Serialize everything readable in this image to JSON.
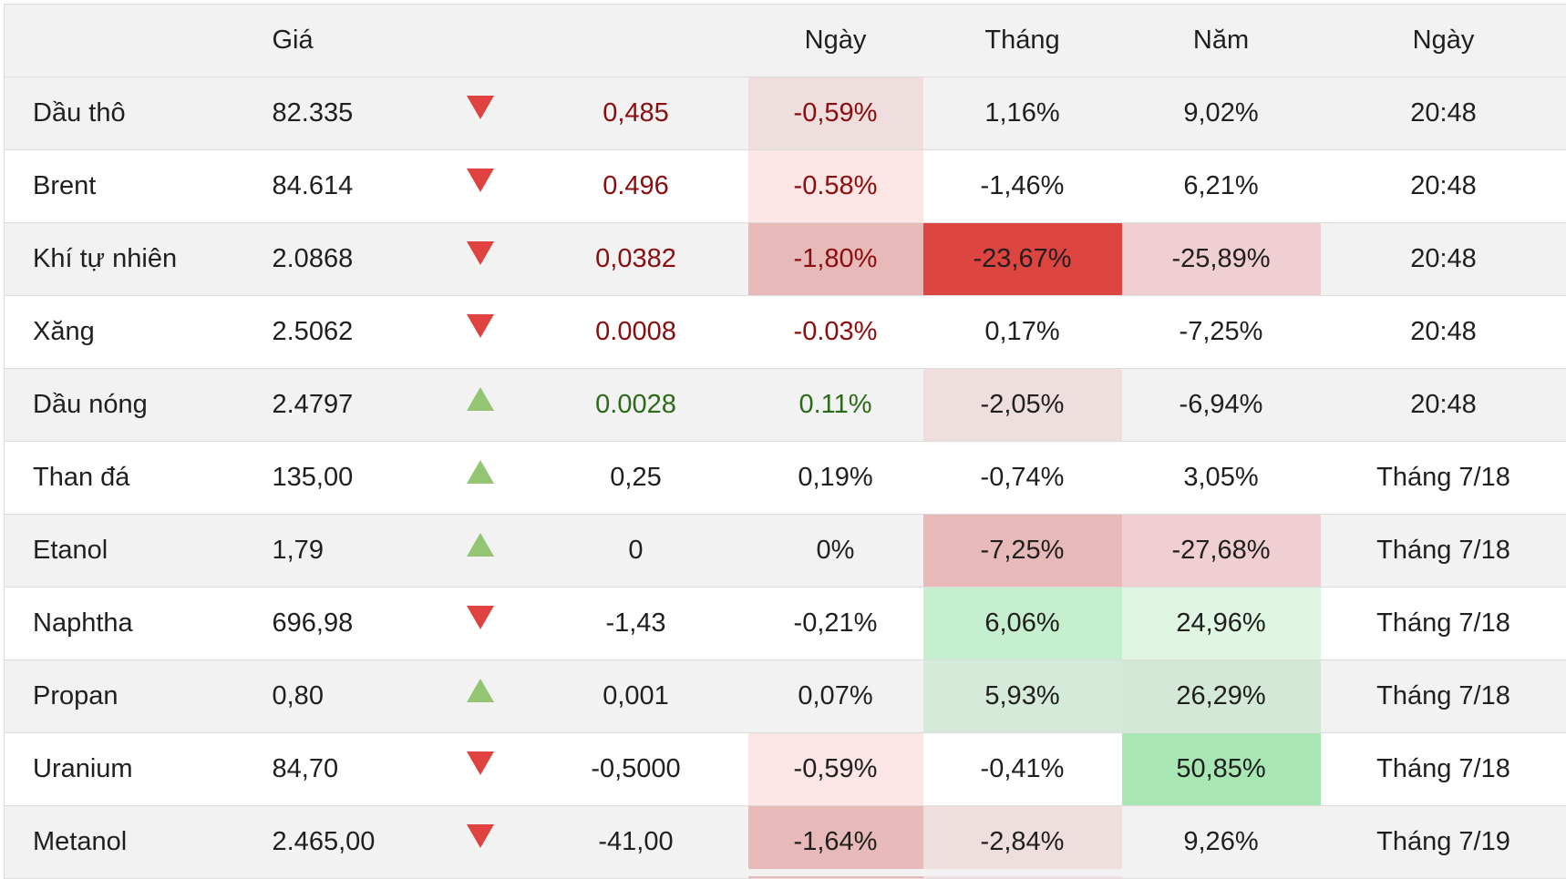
{
  "header": {
    "col_price": "Giá",
    "col_day": "Ngày",
    "col_month": "Tháng",
    "col_year": "Năm",
    "col_date": "Ngày"
  },
  "colors": {
    "down_arrow": "#e0433f",
    "up_arrow": "#93c572",
    "negative_text": "#8b0d0d",
    "positive_text": "#2a6b15"
  },
  "rows": [
    {
      "name": "Dầu thô",
      "price": "82.335",
      "direction": "down",
      "change": "0,485",
      "change_tone": "neg",
      "day": "-0,59%",
      "day_tone": "neg",
      "day_bg": "#efdede",
      "month": "1,16%",
      "month_bg": "",
      "year": "9,02%",
      "year_bg": "",
      "time": "20:48"
    },
    {
      "name": "Brent",
      "price": "84.614",
      "direction": "down",
      "change": "0.496",
      "change_tone": "neg",
      "day": "-0.58%",
      "day_tone": "neg",
      "day_bg": "#fbe5e5",
      "month": "-1,46%",
      "month_bg": "",
      "year": "6,21%",
      "year_bg": "",
      "time": "20:48"
    },
    {
      "name": "Khí tự nhiên",
      "price": "2.0868",
      "direction": "down",
      "change": "0,0382",
      "change_tone": "neg",
      "day": "-1,80%",
      "day_tone": "neg",
      "day_bg": "#e8b9b9",
      "month": "-23,67%",
      "month_bg": "#dd4540",
      "year": "-25,89%",
      "year_bg": "#efcfd1",
      "time": "20:48"
    },
    {
      "name": "Xăng",
      "price": "2.5062",
      "direction": "down",
      "change": "0.0008",
      "change_tone": "neg",
      "day": "-0.03%",
      "day_tone": "neg",
      "day_bg": "",
      "month": "0,17%",
      "month_bg": "",
      "year": "-7,25%",
      "year_bg": "",
      "time": "20:48"
    },
    {
      "name": "Dầu nóng",
      "price": "2.4797",
      "direction": "up",
      "change": "0.0028",
      "change_tone": "pos",
      "day": "0.11%",
      "day_tone": "pos",
      "day_bg": "",
      "month": "-2,05%",
      "month_bg": "#efdede",
      "year": "-6,94%",
      "year_bg": "",
      "time": "20:48"
    },
    {
      "name": "Than đá",
      "price": "135,00",
      "direction": "up",
      "change": "0,25",
      "change_tone": "neutral",
      "day": "0,19%",
      "day_tone": "neutral",
      "day_bg": "",
      "month": "-0,74%",
      "month_bg": "",
      "year": "3,05%",
      "year_bg": "",
      "time": "Tháng 7/18"
    },
    {
      "name": "Etanol",
      "price": "1,79",
      "direction": "up",
      "change": "0",
      "change_tone": "neutral",
      "day": "0%",
      "day_tone": "neutral",
      "day_bg": "",
      "month": "-7,25%",
      "month_bg": "#e8b9b9",
      "year": "-27,68%",
      "year_bg": "#efcfd1",
      "time": "Tháng 7/18"
    },
    {
      "name": "Naphtha",
      "price": "696,98",
      "direction": "down",
      "change": "-1,43",
      "change_tone": "neutral",
      "day": "-0,21%",
      "day_tone": "neutral",
      "day_bg": "",
      "month": "6,06%",
      "month_bg": "#c6efcf",
      "year": "24,96%",
      "year_bg": "#dff6e2",
      "time": "Tháng 7/18"
    },
    {
      "name": "Propan",
      "price": "0,80",
      "direction": "up",
      "change": "0,001",
      "change_tone": "neutral",
      "day": "0,07%",
      "day_tone": "neutral",
      "day_bg": "",
      "month": "5,93%",
      "month_bg": "#d5ead8",
      "year": "26,29%",
      "year_bg": "#d3e8d6",
      "time": "Tháng 7/18"
    },
    {
      "name": "Uranium",
      "price": "84,70",
      "direction": "down",
      "change": "-0,5000",
      "change_tone": "neutral",
      "day": "-0,59%",
      "day_tone": "neutral",
      "day_bg": "#fbe5e5",
      "month": "-0,41%",
      "month_bg": "",
      "year": "50,85%",
      "year_bg": "#a8e6b4",
      "time": "Tháng 7/18"
    },
    {
      "name": "Metanol",
      "price": "2.465,00",
      "direction": "down",
      "change": "-41,00",
      "change_tone": "neutral",
      "day": "-1,64%",
      "day_tone": "neutral",
      "day_bg": "#e8b9b9",
      "month": "-2,84%",
      "month_bg": "#efdede",
      "year": "9,26%",
      "year_bg": "",
      "time": "Tháng 7/19"
    }
  ]
}
